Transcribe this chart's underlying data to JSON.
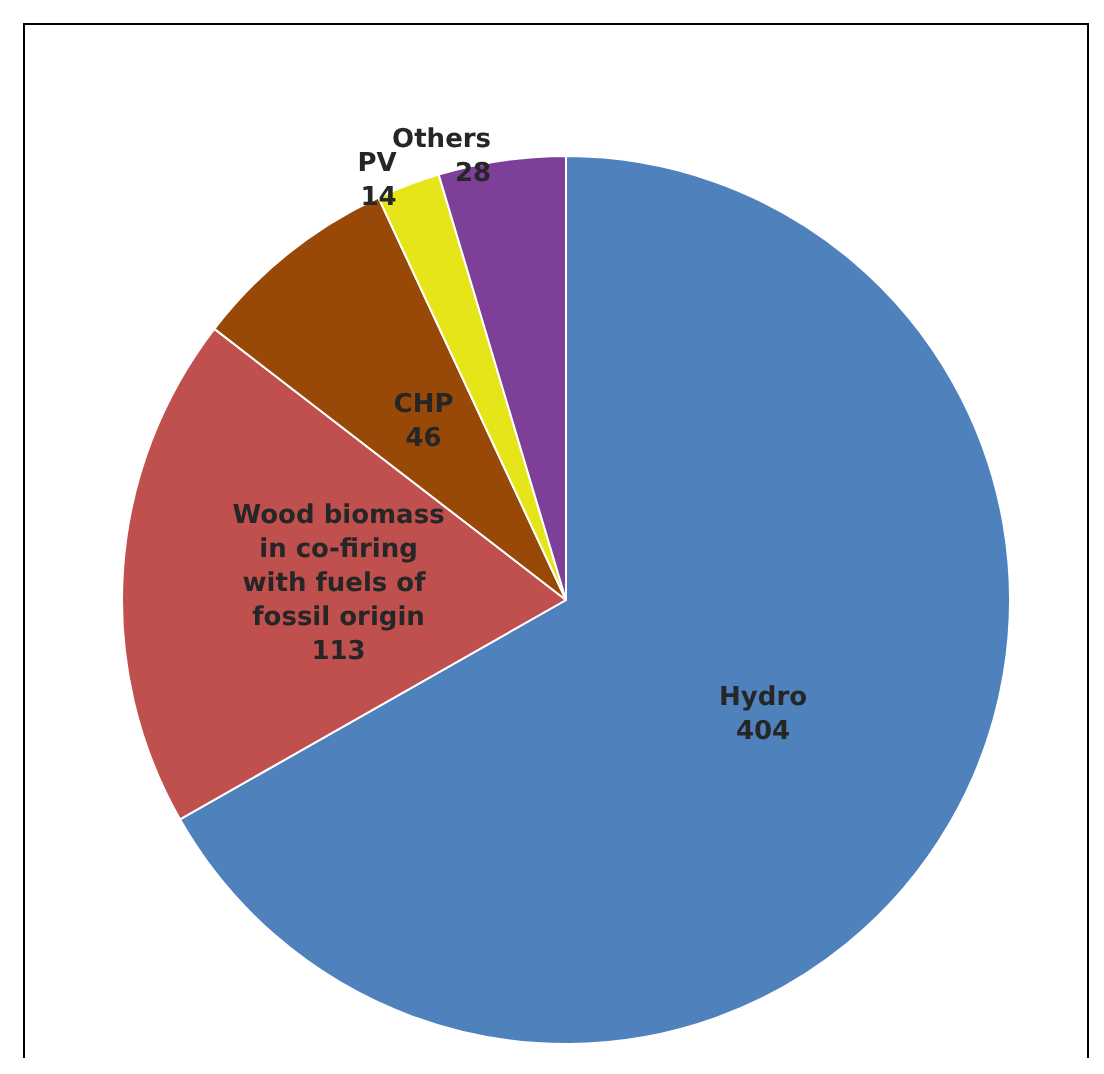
{
  "chart_data": {
    "type": "pie",
    "categories": [
      "Hydro",
      "Wood biomass in co-firing with fuels of fossil origin",
      "CHP",
      "PV",
      "Others"
    ],
    "values": [
      404,
      113,
      46,
      14,
      28
    ],
    "colors": [
      "#4f81bd",
      "#c0504d",
      "#984807",
      "#e5e519",
      "#7d3f98"
    ],
    "data_labels": true,
    "legend": false
  }
}
